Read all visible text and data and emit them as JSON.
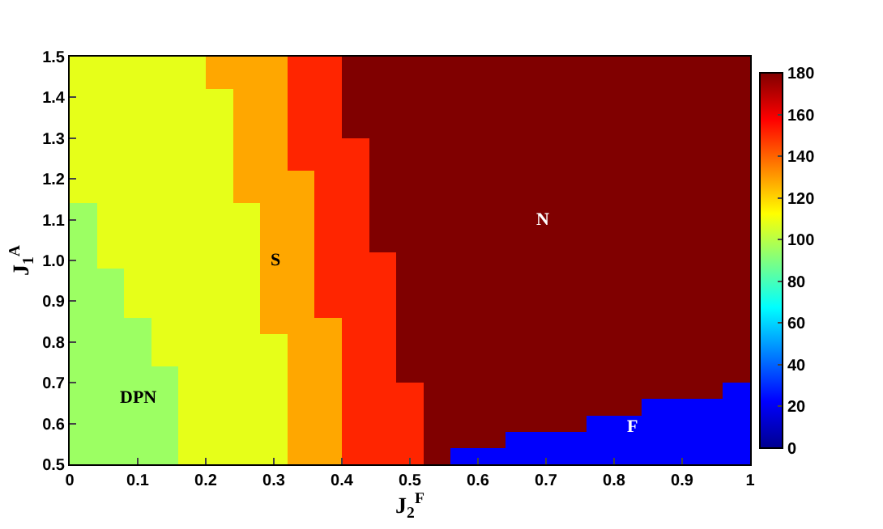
{
  "chart_data": {
    "type": "heatmap",
    "xlabel": "J$_{2}$$^{F}$",
    "ylabel": "J$_{1}$$^{A}$",
    "xlim": [
      0,
      1
    ],
    "ylim": [
      0.5,
      1.5
    ],
    "xticks": [
      0,
      0.1,
      0.2,
      0.3,
      0.4,
      0.5,
      0.6,
      0.7,
      0.8,
      0.9,
      1
    ],
    "yticks": [
      0.5,
      0.6,
      0.7,
      0.8,
      0.9,
      {
        "value": 1,
        "label": "1.0"
      },
      1.1,
      1.2,
      1.3,
      1.4,
      1.5
    ],
    "clim": [
      0,
      180
    ],
    "cticks": [
      0,
      20,
      40,
      60,
      80,
      100,
      120,
      140,
      160,
      180
    ],
    "annotations": [
      "DPN",
      "S",
      "N",
      "F"
    ],
    "cells": [
      [
        108,
        108,
        108,
        108,
        108,
        128,
        128,
        128,
        151,
        151,
        180,
        180,
        180,
        180,
        180,
        180,
        180,
        180,
        180,
        180,
        180,
        180,
        180,
        180,
        180
      ],
      [
        108,
        108,
        108,
        108,
        108,
        128,
        128,
        128,
        151,
        151,
        180,
        180,
        180,
        180,
        180,
        180,
        180,
        180,
        180,
        180,
        180,
        180,
        180,
        180,
        180
      ],
      [
        108,
        108,
        108,
        108,
        108,
        108,
        128,
        128,
        151,
        151,
        180,
        180,
        180,
        180,
        180,
        180,
        180,
        180,
        180,
        180,
        180,
        180,
        180,
        180,
        180
      ],
      [
        108,
        108,
        108,
        108,
        108,
        108,
        128,
        128,
        151,
        151,
        180,
        180,
        180,
        180,
        180,
        180,
        180,
        180,
        180,
        180,
        180,
        180,
        180,
        180,
        180
      ],
      [
        108,
        108,
        108,
        108,
        108,
        108,
        128,
        128,
        151,
        151,
        180,
        180,
        180,
        180,
        180,
        180,
        180,
        180,
        180,
        180,
        180,
        180,
        180,
        180,
        180
      ],
      [
        108,
        108,
        108,
        108,
        108,
        108,
        128,
        128,
        151,
        151,
        151,
        180,
        180,
        180,
        180,
        180,
        180,
        180,
        180,
        180,
        180,
        180,
        180,
        180,
        180
      ],
      [
        108,
        108,
        108,
        108,
        108,
        108,
        128,
        128,
        151,
        151,
        151,
        180,
        180,
        180,
        180,
        180,
        180,
        180,
        180,
        180,
        180,
        180,
        180,
        180,
        180
      ],
      [
        108,
        108,
        108,
        108,
        108,
        108,
        128,
        128,
        128,
        151,
        151,
        180,
        180,
        180,
        180,
        180,
        180,
        180,
        180,
        180,
        180,
        180,
        180,
        180,
        180
      ],
      [
        108,
        108,
        108,
        108,
        108,
        108,
        128,
        128,
        128,
        151,
        151,
        180,
        180,
        180,
        180,
        180,
        180,
        180,
        180,
        180,
        180,
        180,
        180,
        180,
        180
      ],
      [
        95,
        108,
        108,
        108,
        108,
        108,
        108,
        128,
        128,
        151,
        151,
        180,
        180,
        180,
        180,
        180,
        180,
        180,
        180,
        180,
        180,
        180,
        180,
        180,
        180
      ],
      [
        95,
        108,
        108,
        108,
        108,
        108,
        108,
        128,
        128,
        151,
        151,
        180,
        180,
        180,
        180,
        180,
        180,
        180,
        180,
        180,
        180,
        180,
        180,
        180,
        180
      ],
      [
        95,
        108,
        108,
        108,
        108,
        108,
        108,
        128,
        128,
        151,
        151,
        180,
        180,
        180,
        180,
        180,
        180,
        180,
        180,
        180,
        180,
        180,
        180,
        180,
        180
      ],
      [
        95,
        108,
        108,
        108,
        108,
        108,
        108,
        128,
        128,
        151,
        151,
        151,
        180,
        180,
        180,
        180,
        180,
        180,
        180,
        180,
        180,
        180,
        180,
        180,
        180
      ],
      [
        95,
        95,
        108,
        108,
        108,
        108,
        108,
        128,
        128,
        151,
        151,
        151,
        180,
        180,
        180,
        180,
        180,
        180,
        180,
        180,
        180,
        180,
        180,
        180,
        180
      ],
      [
        95,
        95,
        108,
        108,
        108,
        108,
        108,
        128,
        128,
        151,
        151,
        151,
        180,
        180,
        180,
        180,
        180,
        180,
        180,
        180,
        180,
        180,
        180,
        180,
        180
      ],
      [
        95,
        95,
        108,
        108,
        108,
        108,
        108,
        128,
        128,
        151,
        151,
        151,
        180,
        180,
        180,
        180,
        180,
        180,
        180,
        180,
        180,
        180,
        180,
        180,
        180
      ],
      [
        95,
        95,
        95,
        108,
        108,
        108,
        108,
        128,
        128,
        128,
        151,
        151,
        180,
        180,
        180,
        180,
        180,
        180,
        180,
        180,
        180,
        180,
        180,
        180,
        180
      ],
      [
        95,
        95,
        95,
        108,
        108,
        108,
        108,
        108,
        128,
        128,
        151,
        151,
        180,
        180,
        180,
        180,
        180,
        180,
        180,
        180,
        180,
        180,
        180,
        180,
        180
      ],
      [
        95,
        95,
        95,
        108,
        108,
        108,
        108,
        108,
        128,
        128,
        151,
        151,
        180,
        180,
        180,
        180,
        180,
        180,
        180,
        180,
        180,
        180,
        180,
        180,
        180
      ],
      [
        95,
        95,
        95,
        95,
        108,
        108,
        108,
        108,
        128,
        128,
        151,
        151,
        180,
        180,
        180,
        180,
        180,
        180,
        180,
        180,
        180,
        180,
        180,
        180,
        180
      ],
      [
        95,
        95,
        95,
        95,
        108,
        108,
        108,
        108,
        128,
        128,
        151,
        151,
        151,
        180,
        180,
        180,
        180,
        180,
        180,
        180,
        180,
        180,
        180,
        180,
        22
      ],
      [
        95,
        95,
        95,
        95,
        108,
        108,
        108,
        108,
        128,
        128,
        151,
        151,
        151,
        180,
        180,
        180,
        180,
        180,
        180,
        180,
        180,
        22,
        22,
        22,
        22
      ],
      [
        95,
        95,
        95,
        95,
        108,
        108,
        108,
        108,
        128,
        128,
        151,
        151,
        151,
        180,
        180,
        180,
        180,
        180,
        180,
        22,
        22,
        22,
        22,
        22,
        22
      ],
      [
        95,
        95,
        95,
        95,
        108,
        108,
        108,
        108,
        128,
        128,
        151,
        151,
        151,
        180,
        180,
        180,
        22,
        22,
        22,
        22,
        22,
        22,
        22,
        22,
        22
      ],
      [
        95,
        95,
        95,
        95,
        108,
        108,
        108,
        108,
        128,
        128,
        151,
        151,
        151,
        180,
        22,
        22,
        22,
        22,
        22,
        22,
        22,
        22,
        22,
        22,
        22
      ]
    ]
  }
}
